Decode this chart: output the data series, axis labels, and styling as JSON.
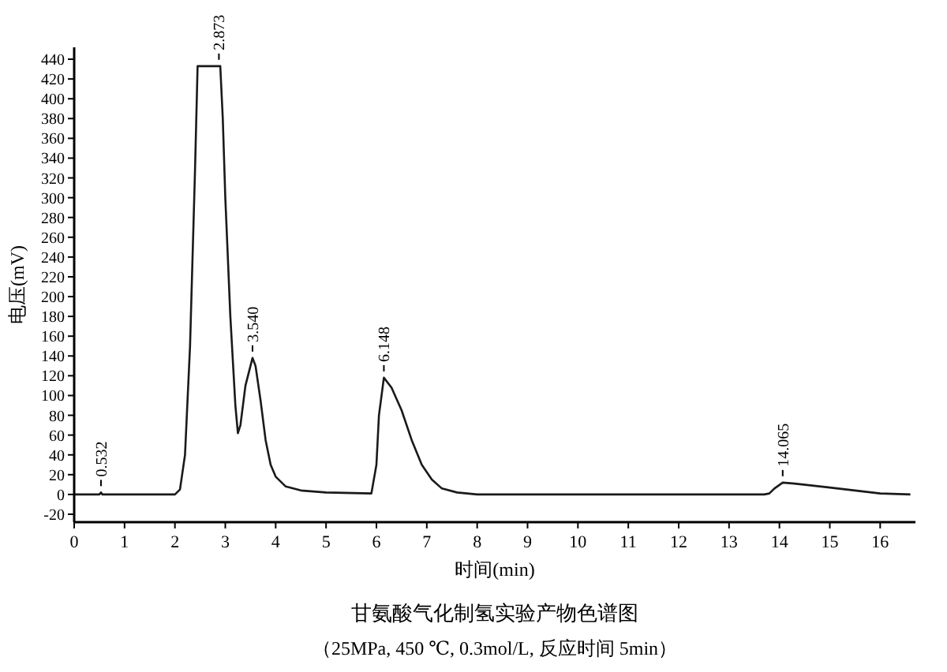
{
  "chart_data": {
    "type": "line",
    "title": "甘氨酸气化制氢实验产物色谱图",
    "subtitle": "（25MPa, 450 ℃, 0.3mol/L, 反应时间 5min）",
    "xlabel": "时间(min)",
    "ylabel": "电压(mV)",
    "xlim": [
      0,
      16.7
    ],
    "xticks": [
      0,
      1,
      2,
      3,
      4,
      5,
      6,
      7,
      8,
      9,
      10,
      11,
      12,
      13,
      14,
      15,
      16
    ],
    "ylim": [
      -28,
      452
    ],
    "yticks": [
      -20,
      0,
      20,
      40,
      60,
      80,
      100,
      120,
      140,
      160,
      180,
      200,
      220,
      240,
      260,
      280,
      300,
      320,
      340,
      360,
      380,
      400,
      420,
      440
    ],
    "grid": false,
    "marker": "none",
    "line_style": "solid",
    "series": [
      {
        "color": "#1a1a1a",
        "x": [
          0,
          0.5,
          0.532,
          0.56,
          2.0,
          2.1,
          2.2,
          2.3,
          2.4,
          2.45,
          2.9,
          2.95,
          3.0,
          3.1,
          3.2,
          3.25,
          3.3,
          3.4,
          3.54,
          3.6,
          3.7,
          3.8,
          3.9,
          4.0,
          4.2,
          4.5,
          5.0,
          5.9,
          6.0,
          6.05,
          6.148,
          6.3,
          6.5,
          6.7,
          6.9,
          7.1,
          7.3,
          7.6,
          8.0,
          13.7,
          13.8,
          13.9,
          14.065,
          14.3,
          15.0,
          15.5,
          16.0,
          16.6
        ],
        "values": [
          0,
          0,
          2,
          0,
          0,
          5,
          40,
          150,
          330,
          433,
          433,
          380,
          300,
          180,
          90,
          62,
          70,
          110,
          138,
          130,
          95,
          55,
          30,
          18,
          8,
          4,
          2,
          1,
          30,
          80,
          118,
          108,
          85,
          55,
          30,
          15,
          6,
          2,
          0,
          0,
          1,
          6,
          12,
          11,
          7,
          4,
          1,
          0
        ]
      }
    ],
    "annotations": [
      {
        "text": "0.532",
        "x": 0.532,
        "y": 2
      },
      {
        "text": "2.873",
        "x": 2.873,
        "y": 433
      },
      {
        "text": "3.540",
        "x": 3.54,
        "y": 138
      },
      {
        "text": "6.148",
        "x": 6.148,
        "y": 118
      },
      {
        "text": "14.065",
        "x": 14.065,
        "y": 12
      }
    ]
  }
}
